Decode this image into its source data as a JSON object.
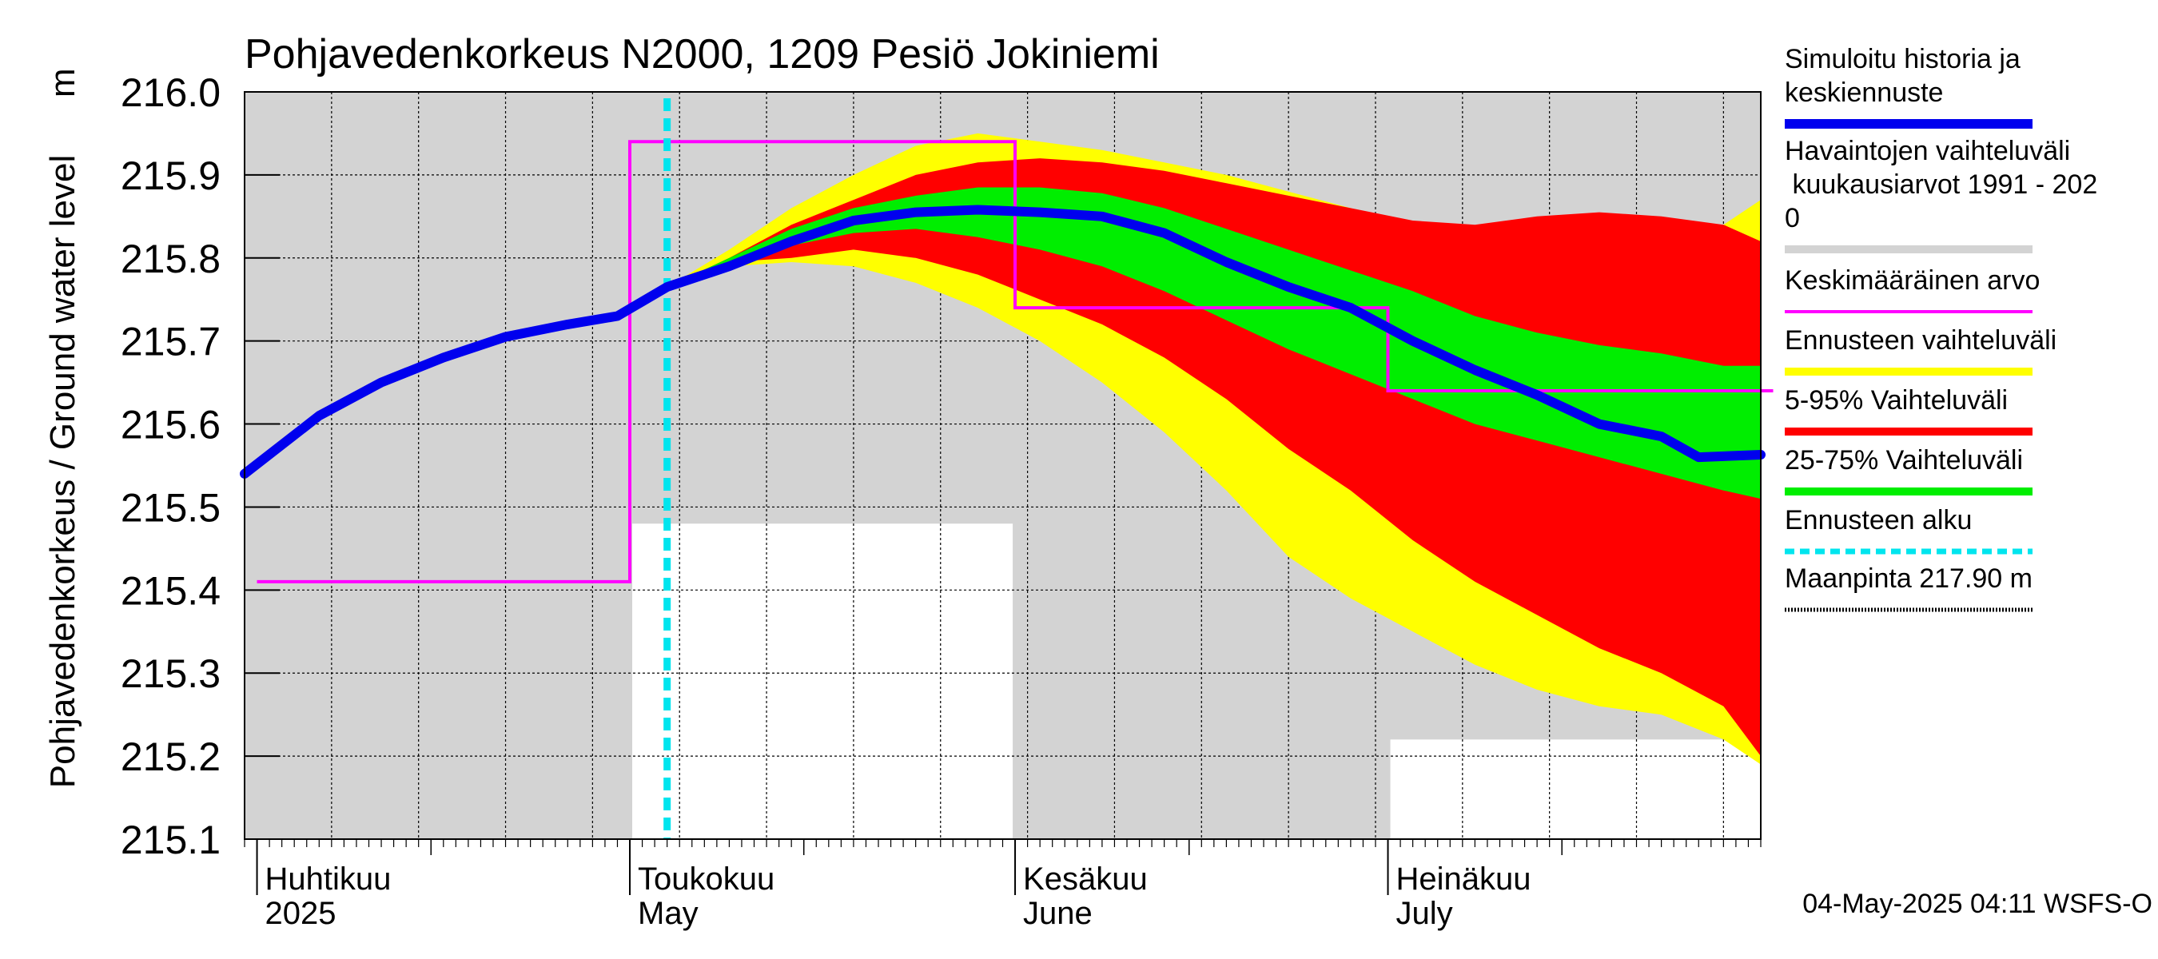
{
  "chart_data": {
    "type": "area",
    "title": "Pohjavedenkorkeus N2000, 1209 Pesiö Jokiniemi",
    "ylabel": "Pohjavedenkorkeus / Ground water level",
    "yunit": "m",
    "ylim": [
      215.1,
      216.0
    ],
    "yticks": [
      215.1,
      215.2,
      215.3,
      215.4,
      215.5,
      215.6,
      215.7,
      215.8,
      215.9,
      216.0
    ],
    "ytick_labels": [
      "215.1",
      "215.2",
      "215.3",
      "215.4",
      "215.5",
      "215.6",
      "215.7",
      "215.8",
      "215.9",
      "216.0"
    ],
    "xlim": [
      "2025-03-31",
      "2025-07-31"
    ],
    "grid": true,
    "legend_position": "right",
    "timestamp": "04-May-2025 04:11 WSFS-O",
    "month_labels": [
      {
        "date": "2025-04-01",
        "fi": "Huhtikuu",
        "en": "2025"
      },
      {
        "date": "2025-05-01",
        "fi": "Toukokuu",
        "en": "May"
      },
      {
        "date": "2025-06-01",
        "fi": "Kesäkuu",
        "en": "June"
      },
      {
        "date": "2025-07-01",
        "fi": "Heinäkuu",
        "en": "July"
      }
    ],
    "forecast_start": "2025-05-04",
    "colors": {
      "history_band": "#d3d3d3",
      "forecast_range": "#ffff00",
      "p5_95": "#ff0000",
      "p25_75": "#00ee00",
      "mean": "#ff00ff",
      "simulated": "#0000ee",
      "forecast_start": "#00e5ee",
      "ground": "#000000"
    },
    "legend": [
      {
        "key": "simulated",
        "label": "Simuloitu historia ja keskiennuste"
      },
      {
        "key": "history_band",
        "label": "Havaintojen vaihteluväli kuukausiarvot 1991 - 2020"
      },
      {
        "key": "mean",
        "label": "Keskimääräinen arvo"
      },
      {
        "key": "forecast_range",
        "label": "Ennusteen vaihteluväli"
      },
      {
        "key": "p5_95",
        "label": "5-95% Vaihteluväli"
      },
      {
        "key": "p25_75",
        "label": "25-75% Vaihteluväli"
      },
      {
        "key": "forecast_start",
        "label": "Ennusteen alku"
      },
      {
        "key": "ground",
        "label": "Maanpinta 217.90 m"
      }
    ],
    "history_min": [
      {
        "start": "2025-04-01",
        "end": "2025-04-30",
        "value": 215.1
      },
      {
        "start": "2025-05-01",
        "end": "2025-05-31",
        "value": 215.48
      },
      {
        "start": "2025-06-01",
        "end": "2025-06-30",
        "value": 215.1
      },
      {
        "start": "2025-07-01",
        "end": "2025-07-31",
        "value": 215.22
      }
    ],
    "monthly_mean": [
      {
        "start": "2025-04-01",
        "end": "2025-04-30",
        "value": 215.41
      },
      {
        "start": "2025-05-01",
        "end": "2025-05-31",
        "value": 215.94
      },
      {
        "start": "2025-06-01",
        "end": "2025-06-30",
        "value": 215.74
      },
      {
        "start": "2025-07-01",
        "end": "2025-07-31",
        "value": 215.64
      }
    ],
    "series": [
      {
        "key": "simulated",
        "name": "Simuloitu historia ja keskiennuste",
        "x": [
          "2025-03-31",
          "2025-04-06",
          "2025-04-11",
          "2025-04-16",
          "2025-04-21",
          "2025-04-26",
          "2025-04-30",
          "2025-05-04",
          "2025-05-09",
          "2025-05-14",
          "2025-05-19",
          "2025-05-24",
          "2025-05-29",
          "2025-06-03",
          "2025-06-08",
          "2025-06-13",
          "2025-06-18",
          "2025-06-23",
          "2025-06-28",
          "2025-07-03",
          "2025-07-08",
          "2025-07-13",
          "2025-07-18",
          "2025-07-23",
          "2025-07-26",
          "2025-07-31"
        ],
        "values": [
          215.54,
          215.61,
          215.65,
          215.68,
          215.705,
          215.72,
          215.73,
          215.765,
          215.79,
          215.82,
          215.845,
          215.855,
          215.858,
          215.855,
          215.85,
          215.83,
          215.795,
          215.765,
          215.74,
          215.7,
          215.665,
          215.635,
          215.6,
          215.585,
          215.56,
          215.563
        ]
      },
      {
        "key": "forecast_range",
        "name": "Ennusteen vaihteluväli",
        "x": [
          "2025-05-04",
          "2025-05-09",
          "2025-05-14",
          "2025-05-19",
          "2025-05-24",
          "2025-05-29",
          "2025-06-03",
          "2025-06-08",
          "2025-06-13",
          "2025-06-18",
          "2025-06-23",
          "2025-06-28",
          "2025-07-03",
          "2025-07-08",
          "2025-07-13",
          "2025-07-18",
          "2025-07-23",
          "2025-07-28",
          "2025-07-31"
        ],
        "upper": [
          215.765,
          215.81,
          215.86,
          215.9,
          215.935,
          215.95,
          215.94,
          215.93,
          215.915,
          215.9,
          215.88,
          215.86,
          215.84,
          215.83,
          215.83,
          215.83,
          215.83,
          215.84,
          215.87
        ],
        "lower": [
          215.765,
          215.79,
          215.795,
          215.79,
          215.77,
          215.74,
          215.7,
          215.65,
          215.59,
          215.52,
          215.44,
          215.39,
          215.35,
          215.31,
          215.28,
          215.26,
          215.25,
          215.22,
          215.19
        ]
      },
      {
        "key": "p5_95",
        "name": "5-95% Vaihteluväli",
        "x": [
          "2025-05-04",
          "2025-05-09",
          "2025-05-14",
          "2025-05-19",
          "2025-05-24",
          "2025-05-29",
          "2025-06-03",
          "2025-06-08",
          "2025-06-13",
          "2025-06-18",
          "2025-06-23",
          "2025-06-28",
          "2025-07-03",
          "2025-07-08",
          "2025-07-13",
          "2025-07-18",
          "2025-07-23",
          "2025-07-28",
          "2025-07-31"
        ],
        "upper": [
          215.765,
          215.8,
          215.84,
          215.87,
          215.9,
          215.915,
          215.92,
          215.915,
          215.905,
          215.89,
          215.875,
          215.86,
          215.845,
          215.84,
          215.85,
          215.855,
          215.85,
          215.84,
          215.82
        ],
        "lower": [
          215.765,
          215.795,
          215.8,
          215.81,
          215.8,
          215.78,
          215.75,
          215.72,
          215.68,
          215.63,
          215.57,
          215.52,
          215.46,
          215.41,
          215.37,
          215.33,
          215.3,
          215.26,
          215.2
        ]
      },
      {
        "key": "p25_75",
        "name": "25-75% Vaihteluväli",
        "x": [
          "2025-05-04",
          "2025-05-09",
          "2025-05-14",
          "2025-05-19",
          "2025-05-24",
          "2025-05-29",
          "2025-06-03",
          "2025-06-08",
          "2025-06-13",
          "2025-06-18",
          "2025-06-23",
          "2025-06-28",
          "2025-07-03",
          "2025-07-08",
          "2025-07-13",
          "2025-07-18",
          "2025-07-23",
          "2025-07-28",
          "2025-07-31"
        ],
        "upper": [
          215.765,
          215.8,
          215.835,
          215.86,
          215.875,
          215.885,
          215.885,
          215.878,
          215.86,
          215.835,
          215.81,
          215.785,
          215.76,
          215.73,
          215.71,
          215.695,
          215.685,
          215.67,
          215.67
        ],
        "lower": [
          215.765,
          215.795,
          215.815,
          215.83,
          215.835,
          215.825,
          215.81,
          215.79,
          215.76,
          215.725,
          215.69,
          215.66,
          215.63,
          215.6,
          215.58,
          215.56,
          215.54,
          215.52,
          215.51
        ]
      }
    ]
  }
}
